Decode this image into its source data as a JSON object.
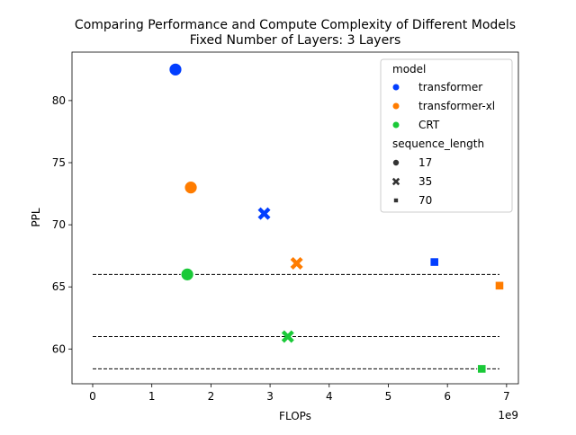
{
  "chart_data": {
    "type": "scatter",
    "title_line1": "Comparing Performance and Compute Complexity of Different Models",
    "title_line2": "Fixed Number of Layers: 3 Layers",
    "xlabel": "FLOPs",
    "ylabel": "PPL",
    "x_offset_label": "1e9",
    "x_scale": 1000000000,
    "xlim": [
      -0.35,
      7.2
    ],
    "ylim": [
      57.2,
      83.9
    ],
    "x_ticks": [
      0,
      1,
      2,
      3,
      4,
      5,
      6,
      7
    ],
    "y_ticks": [
      60,
      65,
      70,
      75,
      80
    ],
    "grid": false,
    "legend": {
      "placement": "top-right",
      "hue_title": "model",
      "hue_entries": [
        {
          "label": "transformer",
          "color": "#023eff"
        },
        {
          "label": "transformer-xl",
          "color": "#ff7c00"
        },
        {
          "label": "CRT",
          "color": "#1ac938"
        }
      ],
      "style_title": "sequence_length",
      "style_entries": [
        {
          "label": "17",
          "marker": "circle"
        },
        {
          "label": "35",
          "marker": "x"
        },
        {
          "label": "70",
          "marker": "square"
        }
      ]
    },
    "points": [
      {
        "model": "transformer",
        "sequence_length": "17",
        "x": 1.4,
        "y": 82.5
      },
      {
        "model": "transformer",
        "sequence_length": "35",
        "x": 2.9,
        "y": 70.9
      },
      {
        "model": "transformer",
        "sequence_length": "70",
        "x": 5.78,
        "y": 67.0
      },
      {
        "model": "transformer-xl",
        "sequence_length": "17",
        "x": 1.66,
        "y": 73.0
      },
      {
        "model": "transformer-xl",
        "sequence_length": "35",
        "x": 3.45,
        "y": 66.9
      },
      {
        "model": "transformer-xl",
        "sequence_length": "70",
        "x": 6.88,
        "y": 65.1
      },
      {
        "model": "CRT",
        "sequence_length": "17",
        "x": 1.6,
        "y": 66.0
      },
      {
        "model": "CRT",
        "sequence_length": "35",
        "x": 3.3,
        "y": 61.0
      },
      {
        "model": "CRT",
        "sequence_length": "70",
        "x": 6.58,
        "y": 58.4
      }
    ],
    "reference_lines": [
      {
        "y": 66.0,
        "x_from": 0,
        "x_to": 6.88
      },
      {
        "y": 61.0,
        "x_from": 0,
        "x_to": 6.88
      },
      {
        "y": 58.4,
        "x_from": 0,
        "x_to": 6.88
      }
    ]
  }
}
